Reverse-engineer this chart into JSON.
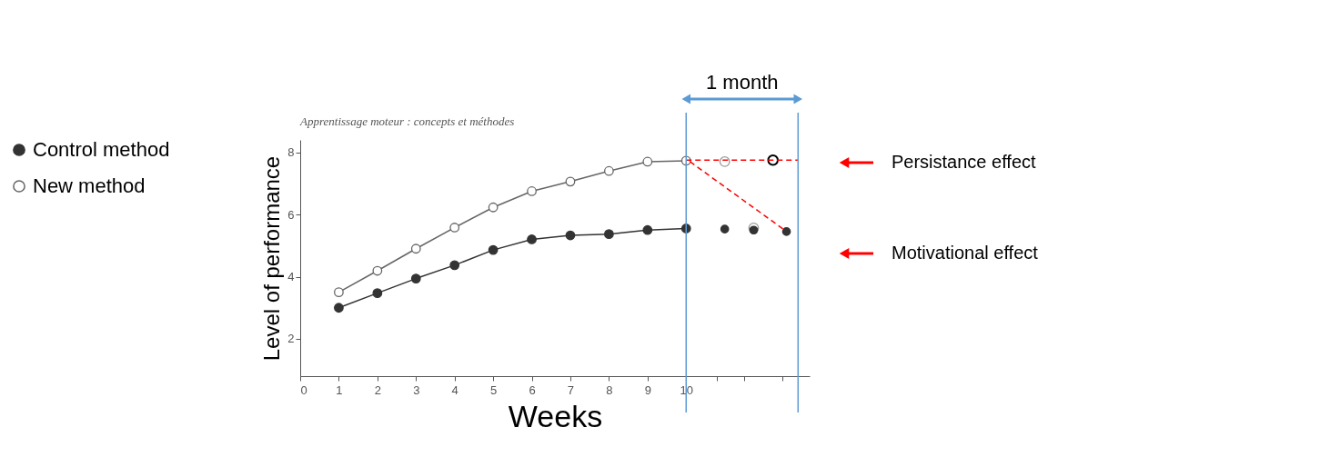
{
  "chart_data": {
    "type": "line",
    "xlabel": "Weeks",
    "ylabel": "Level of performance",
    "xlim": [
      0,
      13.2
    ],
    "ylim": [
      0.8,
      8.4
    ],
    "xticks": [
      0,
      1,
      2,
      3,
      4,
      5,
      6,
      7,
      8,
      9,
      10,
      {
        "value": 10.8,
        "label": null
      },
      {
        "value": 11.5,
        "label": null
      },
      {
        "value": 12.5,
        "label": null
      }
    ],
    "yticks": [
      2,
      4,
      6,
      8
    ],
    "grid": false,
    "legend": "left",
    "marker": "circle",
    "series": [
      {
        "name": "Control method",
        "color": "#333333",
        "x": [
          1,
          2,
          3,
          4,
          5,
          6,
          7,
          8,
          9,
          10
        ],
        "values": [
          3.0,
          3.47,
          3.94,
          4.37,
          4.86,
          5.2,
          5.33,
          5.37,
          5.5,
          5.55
        ]
      },
      {
        "name": "New method",
        "color": "#666666",
        "x": [
          1,
          2,
          3,
          4,
          5,
          6,
          7,
          8,
          9,
          10
        ],
        "values": [
          3.5,
          4.19,
          4.9,
          5.58,
          6.23,
          6.75,
          7.06,
          7.4,
          7.7,
          7.73
        ]
      },
      {
        "type": "scatter",
        "color": "#999999",
        "x": [
          11,
          11.75
        ],
        "values": [
          7.7,
          5.57
        ]
      },
      {
        "type": "scatter",
        "color": "#333333",
        "x": [
          11,
          11.75,
          12.6
        ],
        "values": [
          5.53,
          5.5,
          5.45
        ]
      },
      {
        "type": "scatter",
        "color": "#000000",
        "x": [
          12.25
        ],
        "values": [
          7.75
        ]
      },
      {
        "type": "line",
        "marker": "none",
        "line_style": "dashed",
        "color": "#ff0000",
        "x": [
          10,
          12.9
        ],
        "values": [
          7.75,
          7.75
        ]
      },
      {
        "type": "line",
        "marker": "none",
        "line_style": "dashed",
        "color": "#ff0000",
        "x": [
          10.1,
          12.55
        ],
        "values": [
          7.7,
          5.5
        ]
      }
    ],
    "ref_lines": [
      {
        "axis": "x",
        "value": 10,
        "color": "#5b9bd5"
      },
      {
        "axis": "x",
        "value": 12.9,
        "color": "#5b9bd5"
      }
    ],
    "annotations": [
      "Apprentissage moteur : concepts et méthodes",
      "1 month",
      "Persistance effect",
      "Motivational effect"
    ]
  }
}
